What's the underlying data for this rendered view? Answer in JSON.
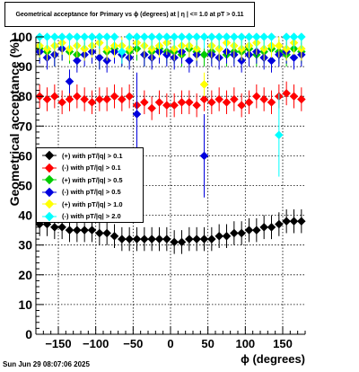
{
  "title": "Geometrical acceptance for Primary vs ϕ (degrees) at |  η  | <= 1.0 at pT > 0.11",
  "footer": "Sun Jun 29 08:07:06 2025",
  "chart_data": {
    "type": "scatter",
    "title": "Geometrical acceptance for Primary vs ϕ (degrees) at |  η  | <= 1.0 at pT > 0.11",
    "xlabel": "ϕ (degrees)",
    "ylabel": "Geometrical acceptance (%)",
    "xlim": [
      -180,
      180
    ],
    "ylim": [
      0,
      100
    ],
    "xticks": [
      -150,
      -100,
      -50,
      0,
      50,
      100,
      150
    ],
    "xtick_labels": [
      "−150",
      "−100",
      "−50",
      "0",
      "50",
      "100",
      "150"
    ],
    "yticks": [
      0,
      10,
      20,
      30,
      40,
      50,
      60,
      70,
      80,
      90,
      100
    ],
    "grid": true,
    "legend_position": "left-middle",
    "series": [
      {
        "name": "(+) with pT/|q| > 0.1",
        "color": "#000000",
        "x": [
          -175,
          -165,
          -155,
          -145,
          -135,
          -125,
          -115,
          -105,
          -95,
          -85,
          -75,
          -65,
          -55,
          -45,
          -35,
          -25,
          -15,
          -5,
          5,
          15,
          25,
          35,
          45,
          55,
          65,
          75,
          85,
          95,
          105,
          115,
          125,
          135,
          145,
          155,
          165,
          175
        ],
        "y": [
          37,
          37,
          36,
          36,
          35,
          35,
          35,
          35,
          34,
          34,
          33,
          32,
          32,
          32,
          32,
          32,
          32,
          32,
          31,
          31,
          32,
          32,
          32,
          32,
          33,
          33,
          34,
          34,
          35,
          35,
          36,
          36,
          37,
          38,
          38,
          38
        ]
      },
      {
        "name": "(-) with pT/|q| > 0.1",
        "color": "#ff0000",
        "x": [
          -175,
          -165,
          -155,
          -145,
          -135,
          -125,
          -115,
          -105,
          -95,
          -85,
          -75,
          -65,
          -55,
          -45,
          -35,
          -25,
          -15,
          -5,
          5,
          15,
          25,
          35,
          45,
          55,
          65,
          75,
          85,
          95,
          105,
          115,
          125,
          135,
          145,
          155,
          165,
          175
        ],
        "y": [
          80,
          79,
          80,
          78,
          79,
          80,
          79,
          78,
          79,
          79,
          80,
          79,
          80,
          77,
          78,
          76,
          78,
          77,
          77,
          78,
          78,
          77,
          79,
          78,
          79,
          78,
          79,
          77,
          78,
          80,
          79,
          78,
          80,
          81,
          80,
          79
        ]
      },
      {
        "name": "(+) with pT/|q| > 0.5",
        "color": "#00cc00",
        "x": [
          -175,
          -165,
          -155,
          -145,
          -135,
          -125,
          -115,
          -105,
          -95,
          -85,
          -75,
          -65,
          -55,
          -45,
          -35,
          -25,
          -15,
          -5,
          5,
          15,
          25,
          35,
          45,
          55,
          65,
          75,
          85,
          95,
          105,
          115,
          125,
          135,
          145,
          155,
          165,
          175
        ],
        "y": [
          96,
          95,
          94,
          96,
          95,
          94,
          96,
          95,
          93,
          95,
          96,
          94,
          95,
          96,
          94,
          95,
          96,
          95,
          95,
          94,
          96,
          95,
          94,
          95,
          96,
          94,
          95,
          95,
          96,
          94,
          95,
          96,
          95,
          94,
          96,
          95
        ]
      },
      {
        "name": "(-) with pT/|q| > 0.5",
        "color": "#0000dd",
        "x": [
          -175,
          -165,
          -155,
          -145,
          -135,
          -125,
          -115,
          -105,
          -95,
          -85,
          -75,
          -65,
          -55,
          -45,
          -35,
          -25,
          -15,
          -5,
          5,
          15,
          25,
          35,
          45,
          55,
          65,
          75,
          85,
          95,
          105,
          115,
          125,
          135,
          145,
          155,
          165,
          175
        ],
        "y": [
          95,
          93,
          94,
          96,
          85,
          92,
          94,
          95,
          93,
          92,
          95,
          94,
          93,
          74,
          94,
          93,
          95,
          94,
          93,
          95,
          92,
          94,
          60,
          94,
          93,
          95,
          94,
          92,
          94,
          95,
          93,
          92,
          94,
          95,
          93,
          94
        ]
      },
      {
        "name": "(+) with pT/|q| > 1.0",
        "color": "#ffff00",
        "x": [
          -175,
          -165,
          -155,
          -145,
          -135,
          -125,
          -115,
          -105,
          -95,
          -85,
          -75,
          -65,
          -55,
          -45,
          -35,
          -25,
          -15,
          -5,
          5,
          15,
          25,
          35,
          45,
          55,
          65,
          75,
          85,
          95,
          105,
          115,
          125,
          135,
          145,
          155,
          165,
          175
        ],
        "y": [
          97,
          96,
          97,
          98,
          96,
          97,
          96,
          97,
          98,
          96,
          97,
          97,
          96,
          98,
          97,
          96,
          97,
          98,
          96,
          97,
          97,
          96,
          84,
          97,
          96,
          98,
          97,
          96,
          97,
          98,
          96,
          97,
          97,
          96,
          98,
          96
        ]
      },
      {
        "name": "(-) with pT/|q| > 2.0",
        "color": "#00ffff",
        "x": [
          -175,
          -165,
          -155,
          -145,
          -135,
          -125,
          -115,
          -105,
          -95,
          -85,
          -75,
          -65,
          -55,
          -45,
          -35,
          -25,
          -15,
          -5,
          5,
          15,
          25,
          35,
          45,
          55,
          65,
          75,
          85,
          95,
          105,
          115,
          125,
          135,
          145,
          155,
          165,
          175
        ],
        "y": [
          100,
          100,
          100,
          100,
          100,
          100,
          100,
          100,
          100,
          100,
          100,
          95,
          100,
          100,
          100,
          100,
          100,
          100,
          100,
          100,
          100,
          100,
          100,
          100,
          100,
          100,
          100,
          100,
          100,
          100,
          100,
          100,
          67,
          100,
          100,
          100
        ]
      }
    ]
  }
}
